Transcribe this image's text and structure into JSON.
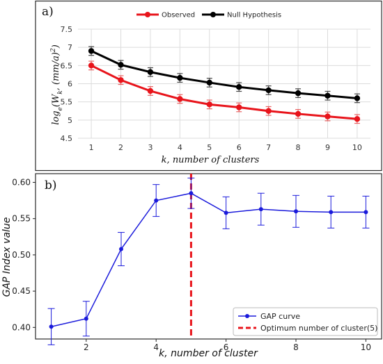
{
  "chart_data": [
    {
      "type": "line",
      "panel_label": "a)",
      "xlabel": "k, number of clusters",
      "ylabel": "log_e(W_k, (mm/a)^2)",
      "x": [
        1,
        2,
        3,
        4,
        5,
        6,
        7,
        8,
        9,
        10
      ],
      "ylim": [
        4.5,
        7.5
      ],
      "yticks": [
        4.5,
        5,
        5.5,
        6,
        6.5,
        7,
        7.5
      ],
      "grid": true,
      "legend_position": "top",
      "series": [
        {
          "name": "Observed",
          "color": "#e8141b",
          "values": [
            6.5,
            6.1,
            5.8,
            5.58,
            5.43,
            5.35,
            5.25,
            5.17,
            5.1,
            5.03
          ],
          "errors": [
            0.12,
            0.12,
            0.12,
            0.12,
            0.12,
            0.12,
            0.12,
            0.12,
            0.12,
            0.12
          ]
        },
        {
          "name": "Null Hypothesis",
          "color": "#000000",
          "values": [
            6.9,
            6.52,
            6.32,
            6.16,
            6.03,
            5.91,
            5.82,
            5.74,
            5.67,
            5.6
          ],
          "errors": [
            0.12,
            0.12,
            0.12,
            0.12,
            0.12,
            0.12,
            0.12,
            0.12,
            0.12,
            0.12
          ]
        }
      ]
    },
    {
      "type": "line",
      "panel_label": "b)",
      "xlabel": "k, number of cluster",
      "ylabel": "GAP Index value",
      "x": [
        1,
        2,
        3,
        4,
        5,
        6,
        7,
        8,
        9,
        10
      ],
      "xticks": [
        2,
        4,
        6,
        8,
        10
      ],
      "xlim": [
        0.55,
        10.45
      ],
      "ylim": [
        0.384,
        0.612
      ],
      "yticks": [
        0.4,
        0.45,
        0.5,
        0.55,
        0.6
      ],
      "ytick_labels": [
        "0.40",
        "0.45",
        "0.50",
        "0.55",
        "0.60"
      ],
      "grid": false,
      "legend_position": "lower right",
      "optimum_k": 5,
      "series": [
        {
          "name": "GAP curve",
          "color": "#1a1adb",
          "values": [
            0.401,
            0.412,
            0.508,
            0.575,
            0.585,
            0.558,
            0.563,
            0.56,
            0.559,
            0.559
          ],
          "errors": [
            0.025,
            0.024,
            0.023,
            0.022,
            0.021,
            0.022,
            0.022,
            0.022,
            0.022,
            0.022
          ]
        },
        {
          "name": "Optimum number of cluster(5)",
          "color": "#e8141b",
          "style": "dashed"
        }
      ]
    }
  ]
}
